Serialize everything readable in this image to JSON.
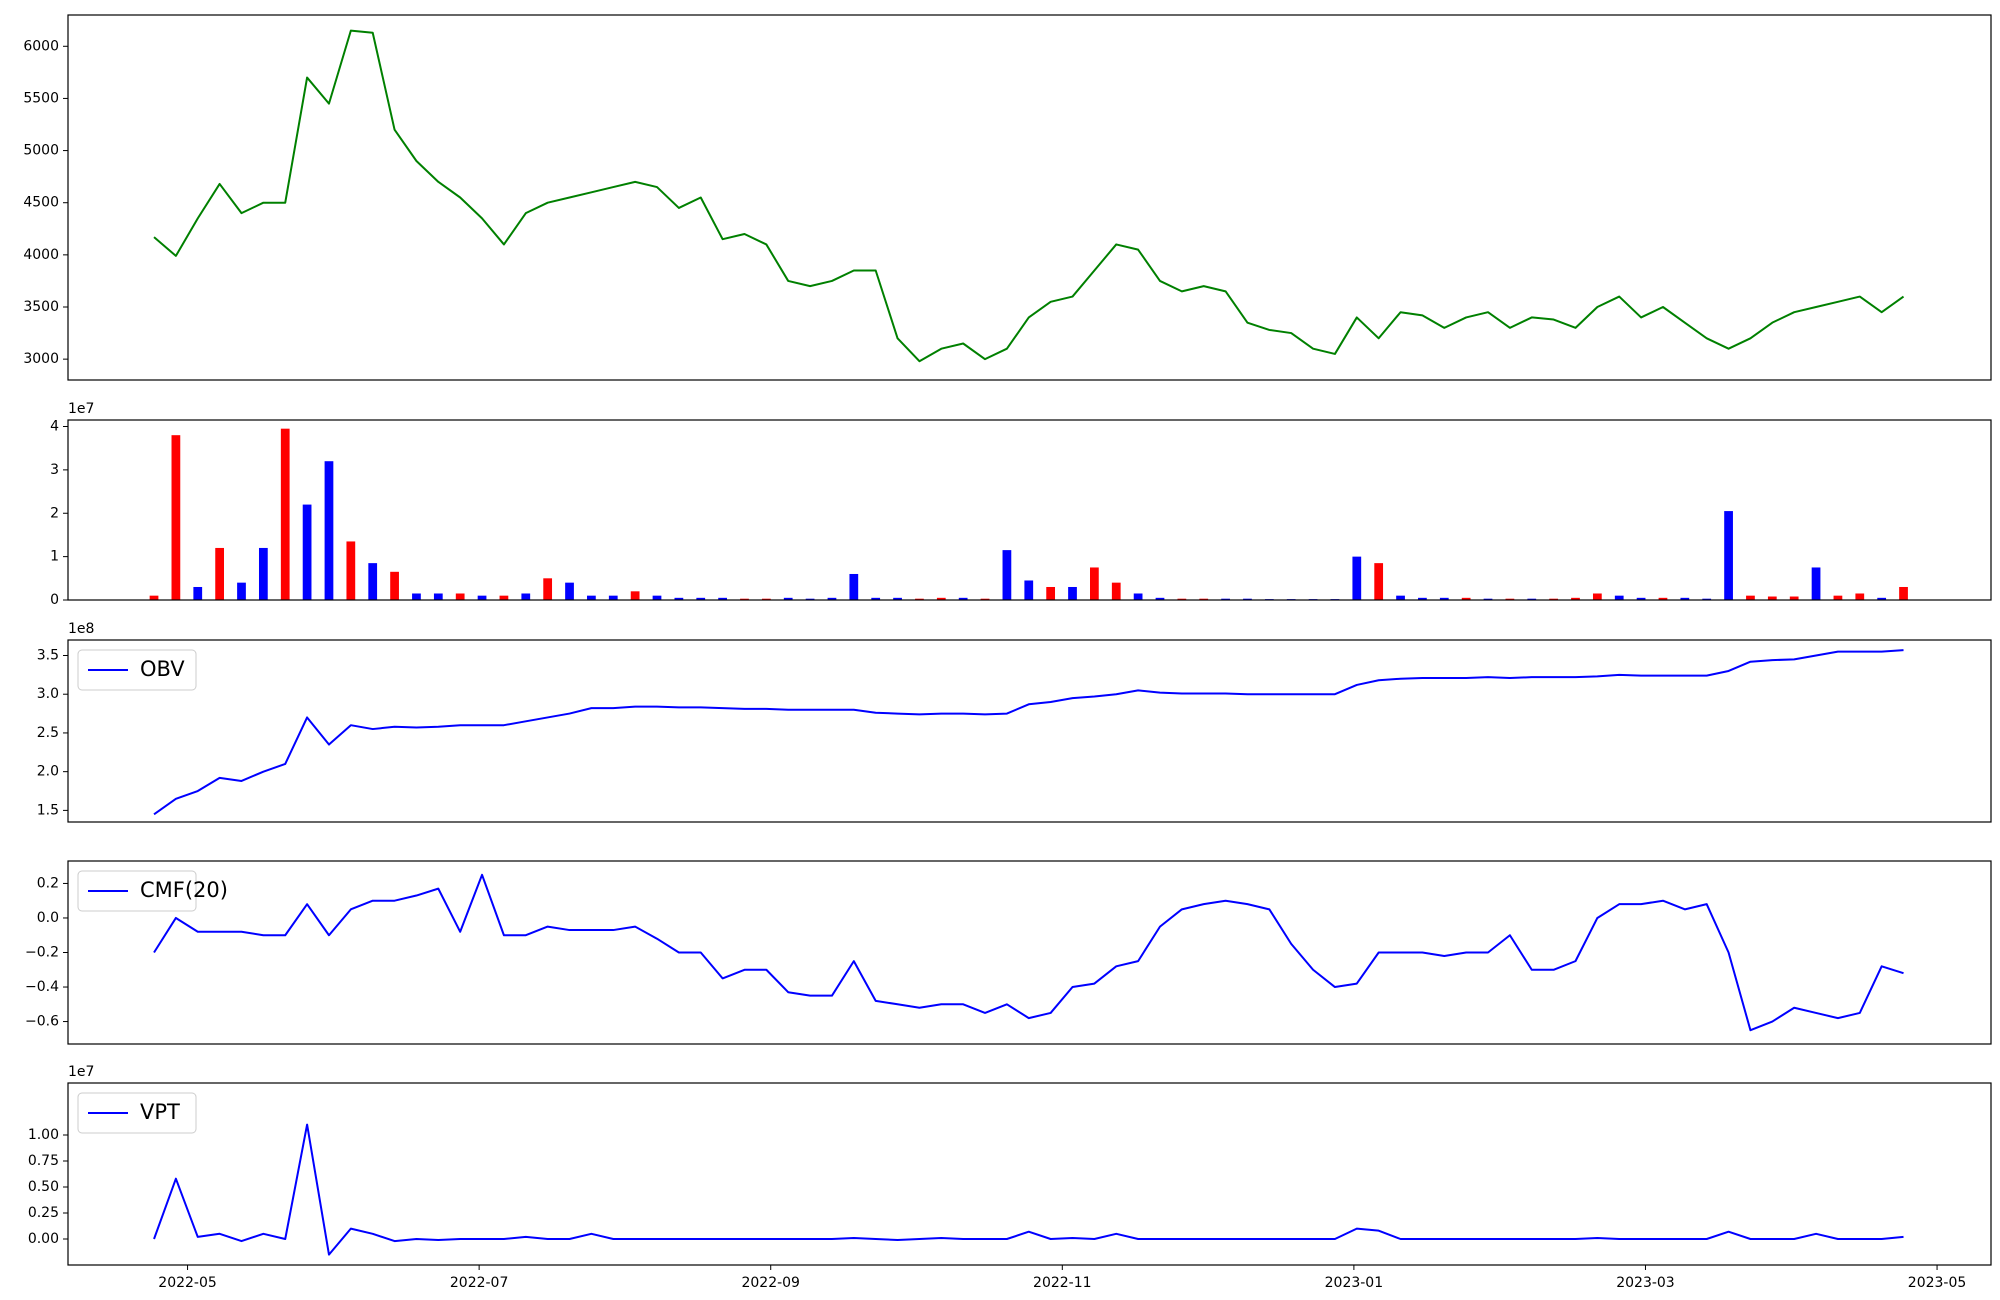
{
  "chart_data": [
    {
      "type": "line",
      "color": "green",
      "x": [
        4.77,
        4.92,
        5.07,
        5.22,
        5.37,
        5.52,
        5.67,
        5.82,
        5.97,
        6.12,
        6.27,
        6.42,
        6.57,
        6.72,
        6.87,
        7.02,
        7.17,
        7.32,
        7.47,
        7.62,
        7.77,
        7.92,
        8.07,
        8.22,
        8.37,
        8.52,
        8.67,
        8.82,
        8.97,
        9.12,
        9.27,
        9.42,
        9.57,
        9.72,
        9.87,
        10.02,
        10.17,
        10.32,
        10.47,
        10.62,
        10.77,
        10.92,
        11.07,
        11.22,
        11.37,
        11.52,
        11.67,
        11.82,
        11.97,
        12.12,
        12.27,
        12.42,
        12.57,
        12.72,
        12.87,
        13.02,
        13.17,
        13.32,
        13.47,
        13.62,
        13.77,
        13.92,
        14.07,
        14.22,
        14.37,
        14.52,
        14.67,
        14.82,
        14.97,
        15.12,
        15.27,
        15.42,
        15.57,
        15.72,
        15.87,
        16.02,
        16.17,
        16.32,
        16.47,
        16.62,
        16.77
      ],
      "values": [
        4170,
        3990,
        4350,
        4680,
        4400,
        4500,
        4500,
        5700,
        5450,
        6150,
        6130,
        5200,
        4900,
        4700,
        4550,
        4350,
        4100,
        4400,
        4500,
        4550,
        4600,
        4650,
        4700,
        4650,
        4450,
        4550,
        4150,
        4200,
        4100,
        3750,
        3700,
        3750,
        3850,
        3850,
        3200,
        2980,
        3100,
        3150,
        3000,
        3100,
        3400,
        3550,
        3600,
        3850,
        4100,
        4050,
        3750,
        3650,
        3700,
        3650,
        3350,
        3280,
        3250,
        3100,
        3050,
        3400,
        3200,
        3450,
        3420,
        3300,
        3400,
        3450,
        3300,
        3400,
        3380,
        3300,
        3500,
        3600,
        3400,
        3500,
        3350,
        3200,
        3100,
        3200,
        3350,
        3450,
        3500,
        3550,
        3600,
        3450,
        3600
      ],
      "xlim": [
        4.18,
        17.37
      ],
      "ylim": [
        2800,
        6300
      ],
      "yticks": [
        3000,
        3500,
        4000,
        4500,
        5000,
        5500,
        6000
      ]
    },
    {
      "type": "bar",
      "offset_label": "1e7",
      "x": [
        4.77,
        4.92,
        5.07,
        5.22,
        5.37,
        5.52,
        5.67,
        5.82,
        5.97,
        6.12,
        6.27,
        6.42,
        6.57,
        6.72,
        6.87,
        7.02,
        7.17,
        7.32,
        7.47,
        7.62,
        7.77,
        7.92,
        8.07,
        8.22,
        8.37,
        8.52,
        8.67,
        8.82,
        8.97,
        9.12,
        9.27,
        9.42,
        9.57,
        9.72,
        9.87,
        10.02,
        10.17,
        10.32,
        10.47,
        10.62,
        10.77,
        10.92,
        11.07,
        11.22,
        11.37,
        11.52,
        11.67,
        11.82,
        11.97,
        12.12,
        12.27,
        12.42,
        12.57,
        12.72,
        12.87,
        13.02,
        13.17,
        13.32,
        13.47,
        13.62,
        13.77,
        13.92,
        14.07,
        14.22,
        14.37,
        14.52,
        14.67,
        14.82,
        14.97,
        15.12,
        15.27,
        15.42,
        15.57,
        15.72,
        15.87,
        16.02,
        16.17,
        16.32,
        16.47,
        16.62,
        16.77
      ],
      "values": [
        0.1,
        3.8,
        0.3,
        1.2,
        0.4,
        1.2,
        3.95,
        2.2,
        3.2,
        1.35,
        0.85,
        0.65,
        0.15,
        0.15,
        0.15,
        0.1,
        0.1,
        0.15,
        0.5,
        0.4,
        0.1,
        0.1,
        0.2,
        0.1,
        0.05,
        0.05,
        0.05,
        0.03,
        0.03,
        0.05,
        0.03,
        0.05,
        0.6,
        0.05,
        0.05,
        0.03,
        0.05,
        0.05,
        0.03,
        1.15,
        0.45,
        0.3,
        0.3,
        0.75,
        0.4,
        0.15,
        0.05,
        0.03,
        0.03,
        0.03,
        0.03,
        0.02,
        0.02,
        0.02,
        0.02,
        1.0,
        0.85,
        0.1,
        0.05,
        0.05,
        0.05,
        0.03,
        0.03,
        0.03,
        0.03,
        0.05,
        0.15,
        0.1,
        0.05,
        0.05,
        0.05,
        0.03,
        2.05,
        0.1,
        0.08,
        0.08,
        0.75,
        0.1,
        0.15,
        0.05,
        0.3
      ],
      "colors": [
        "red",
        "red",
        "blue",
        "red",
        "blue",
        "blue",
        "red",
        "blue",
        "blue",
        "red",
        "blue",
        "red",
        "blue",
        "blue",
        "red",
        "blue",
        "red",
        "blue",
        "red",
        "blue",
        "blue",
        "blue",
        "red",
        "blue",
        "blue",
        "blue",
        "blue",
        "red",
        "red",
        "blue",
        "blue",
        "blue",
        "blue",
        "blue",
        "blue",
        "red",
        "red",
        "blue",
        "red",
        "blue",
        "blue",
        "red",
        "blue",
        "red",
        "red",
        "blue",
        "blue",
        "red",
        "red",
        "blue",
        "blue",
        "blue",
        "blue",
        "blue",
        "blue",
        "blue",
        "red",
        "blue",
        "blue",
        "blue",
        "red",
        "blue",
        "red",
        "blue",
        "red",
        "red",
        "red",
        "blue",
        "blue",
        "red",
        "blue",
        "blue",
        "blue",
        "red",
        "red",
        "red",
        "blue",
        "red",
        "red",
        "blue",
        "red"
      ],
      "xlim": [
        4.18,
        17.37
      ],
      "ylim": [
        0,
        4.15
      ],
      "yticks": [
        0,
        1,
        2,
        3,
        4
      ]
    },
    {
      "type": "line",
      "offset_label": "1e8",
      "legend": "upper left",
      "x": [
        4.77,
        4.92,
        5.07,
        5.22,
        5.37,
        5.52,
        5.67,
        5.82,
        5.97,
        6.12,
        6.27,
        6.42,
        6.57,
        6.72,
        6.87,
        7.02,
        7.17,
        7.32,
        7.47,
        7.62,
        7.77,
        7.92,
        8.07,
        8.22,
        8.37,
        8.52,
        8.67,
        8.82,
        8.97,
        9.12,
        9.27,
        9.42,
        9.57,
        9.72,
        9.87,
        10.02,
        10.17,
        10.32,
        10.47,
        10.62,
        10.77,
        10.92,
        11.07,
        11.22,
        11.37,
        11.52,
        11.67,
        11.82,
        11.97,
        12.12,
        12.27,
        12.42,
        12.57,
        12.72,
        12.87,
        13.02,
        13.17,
        13.32,
        13.47,
        13.62,
        13.77,
        13.92,
        14.07,
        14.22,
        14.37,
        14.52,
        14.67,
        14.82,
        14.97,
        15.12,
        15.27,
        15.42,
        15.57,
        15.72,
        15.87,
        16.02,
        16.17,
        16.32,
        16.47,
        16.62,
        16.77
      ],
      "series": [
        {
          "name": "OBV",
          "color": "blue",
          "values": [
            1.45,
            1.65,
            1.75,
            1.92,
            1.88,
            2.0,
            2.1,
            2.7,
            2.35,
            2.6,
            2.55,
            2.58,
            2.57,
            2.58,
            2.6,
            2.6,
            2.6,
            2.65,
            2.7,
            2.75,
            2.82,
            2.82,
            2.84,
            2.84,
            2.83,
            2.83,
            2.82,
            2.81,
            2.81,
            2.8,
            2.8,
            2.8,
            2.8,
            2.76,
            2.75,
            2.74,
            2.75,
            2.75,
            2.74,
            2.75,
            2.87,
            2.9,
            2.95,
            2.97,
            3.0,
            3.05,
            3.02,
            3.01,
            3.01,
            3.01,
            3.0,
            3.0,
            3.0,
            3.0,
            3.0,
            3.12,
            3.18,
            3.2,
            3.21,
            3.21,
            3.21,
            3.22,
            3.21,
            3.22,
            3.22,
            3.22,
            3.23,
            3.25,
            3.24,
            3.24,
            3.24,
            3.24,
            3.3,
            3.42,
            3.44,
            3.45,
            3.5,
            3.55,
            3.55,
            3.55,
            3.57
          ]
        }
      ],
      "xlim": [
        4.18,
        17.37
      ],
      "ylim": [
        1.35,
        3.7
      ],
      "yticks": [
        1.5,
        {
          "value": 2,
          "label": "2.0"
        },
        2.5,
        {
          "value": 3,
          "label": "3.0"
        },
        3.5
      ]
    },
    {
      "type": "line",
      "legend": "upper left",
      "x": [
        4.77,
        4.92,
        5.07,
        5.22,
        5.37,
        5.52,
        5.67,
        5.82,
        5.97,
        6.12,
        6.27,
        6.42,
        6.57,
        6.72,
        6.87,
        7.02,
        7.17,
        7.32,
        7.47,
        7.62,
        7.77,
        7.92,
        8.07,
        8.22,
        8.37,
        8.52,
        8.67,
        8.82,
        8.97,
        9.12,
        9.27,
        9.42,
        9.57,
        9.72,
        9.87,
        10.02,
        10.17,
        10.32,
        10.47,
        10.62,
        10.77,
        10.92,
        11.07,
        11.22,
        11.37,
        11.52,
        11.67,
        11.82,
        11.97,
        12.12,
        12.27,
        12.42,
        12.57,
        12.72,
        12.87,
        13.02,
        13.17,
        13.32,
        13.47,
        13.62,
        13.77,
        13.92,
        14.07,
        14.22,
        14.37,
        14.52,
        14.67,
        14.82,
        14.97,
        15.12,
        15.27,
        15.42,
        15.57,
        15.72,
        15.87,
        16.02,
        16.17,
        16.32,
        16.47,
        16.62,
        16.77
      ],
      "series": [
        {
          "name": "CMF(20)",
          "color": "blue",
          "values": [
            -0.2,
            0.0,
            -0.08,
            -0.08,
            -0.08,
            -0.1,
            -0.1,
            0.08,
            -0.1,
            0.05,
            0.1,
            0.1,
            0.13,
            0.17,
            -0.08,
            0.25,
            -0.1,
            -0.1,
            -0.05,
            -0.07,
            -0.07,
            -0.07,
            -0.05,
            -0.12,
            -0.2,
            -0.2,
            -0.35,
            -0.3,
            -0.3,
            -0.43,
            -0.45,
            -0.45,
            -0.25,
            -0.48,
            -0.5,
            -0.52,
            -0.5,
            -0.5,
            -0.55,
            -0.5,
            -0.58,
            -0.55,
            -0.4,
            -0.38,
            -0.28,
            -0.25,
            -0.05,
            0.05,
            0.08,
            0.1,
            0.08,
            0.05,
            -0.15,
            -0.3,
            -0.4,
            -0.38,
            -0.2,
            -0.2,
            -0.2,
            -0.22,
            -0.2,
            -0.2,
            -0.1,
            -0.3,
            -0.3,
            -0.25,
            0.0,
            0.08,
            0.08,
            0.1,
            0.05,
            0.08,
            -0.2,
            -0.65,
            -0.6,
            -0.52,
            -0.55,
            -0.58,
            -0.55,
            -0.28,
            -0.32
          ]
        }
      ],
      "xlim": [
        4.18,
        17.37
      ],
      "ylim": [
        -0.73,
        0.33
      ],
      "yticks": [
        {
          "value": -0.6,
          "label": "−0.6"
        },
        {
          "value": -0.4,
          "label": "−0.4"
        },
        {
          "value": -0.2,
          "label": "−0.2"
        },
        {
          "value": 0,
          "label": "0.0"
        },
        0.2
      ]
    },
    {
      "type": "line",
      "offset_label": "1e7",
      "legend": "upper left",
      "x": [
        4.77,
        4.92,
        5.07,
        5.22,
        5.37,
        5.52,
        5.67,
        5.82,
        5.97,
        6.12,
        6.27,
        6.42,
        6.57,
        6.72,
        6.87,
        7.02,
        7.17,
        7.32,
        7.47,
        7.62,
        7.77,
        7.92,
        8.07,
        8.22,
        8.37,
        8.52,
        8.67,
        8.82,
        8.97,
        9.12,
        9.27,
        9.42,
        9.57,
        9.72,
        9.87,
        10.02,
        10.17,
        10.32,
        10.47,
        10.62,
        10.77,
        10.92,
        11.07,
        11.22,
        11.37,
        11.52,
        11.67,
        11.82,
        11.97,
        12.12,
        12.27,
        12.42,
        12.57,
        12.72,
        12.87,
        13.02,
        13.17,
        13.32,
        13.47,
        13.62,
        13.77,
        13.92,
        14.07,
        14.22,
        14.37,
        14.52,
        14.67,
        14.82,
        14.97,
        15.12,
        15.27,
        15.42,
        15.57,
        15.72,
        15.87,
        16.02,
        16.17,
        16.32,
        16.47,
        16.62,
        16.77
      ],
      "series": [
        {
          "name": "VPT",
          "color": "blue",
          "values": [
            0.0,
            0.58,
            0.02,
            0.05,
            -0.02,
            0.05,
            0.0,
            1.1,
            -0.15,
            0.1,
            0.05,
            -0.02,
            0.0,
            -0.01,
            0.0,
            0.0,
            0.0,
            0.02,
            0.0,
            0.0,
            0.05,
            0.0,
            0.0,
            0.0,
            0.0,
            0.0,
            0.0,
            0.0,
            0.0,
            0.0,
            0.0,
            0.0,
            0.01,
            0.0,
            -0.01,
            0.0,
            0.01,
            0.0,
            0.0,
            0.0,
            0.07,
            0.0,
            0.01,
            0.0,
            0.05,
            0.0,
            0.0,
            0.0,
            0.0,
            0.0,
            0.0,
            0.0,
            0.0,
            0.0,
            0.0,
            0.1,
            0.08,
            0.0,
            0.0,
            0.0,
            0.0,
            0.0,
            0.0,
            0.0,
            0.0,
            0.0,
            0.01,
            0.0,
            0.0,
            0.0,
            0.0,
            0.0,
            0.07,
            0.0,
            0.0,
            0.0,
            0.05,
            0.0,
            0.0,
            0.0,
            0.02
          ]
        }
      ],
      "xlim": [
        4.18,
        17.37
      ],
      "ylim": [
        -0.25,
        1.5
      ],
      "yticks": [
        {
          "value": 0,
          "label": "0.00"
        },
        {
          "value": 0.25,
          "label": "0.25"
        },
        {
          "value": 0.5,
          "label": "0.50"
        },
        {
          "value": 0.75,
          "label": "0.75"
        },
        {
          "value": 1,
          "label": "1.00"
        }
      ],
      "xticks": [
        {
          "value": 5,
          "label": "2022-05"
        },
        {
          "value": 7,
          "label": "2022-07"
        },
        {
          "value": 9,
          "label": "2022-09"
        },
        {
          "value": 11,
          "label": "2022-11"
        },
        {
          "value": 13,
          "label": "2023-01"
        },
        {
          "value": 15,
          "label": "2023-03"
        },
        {
          "value": 17,
          "label": "2023-05"
        }
      ]
    }
  ]
}
